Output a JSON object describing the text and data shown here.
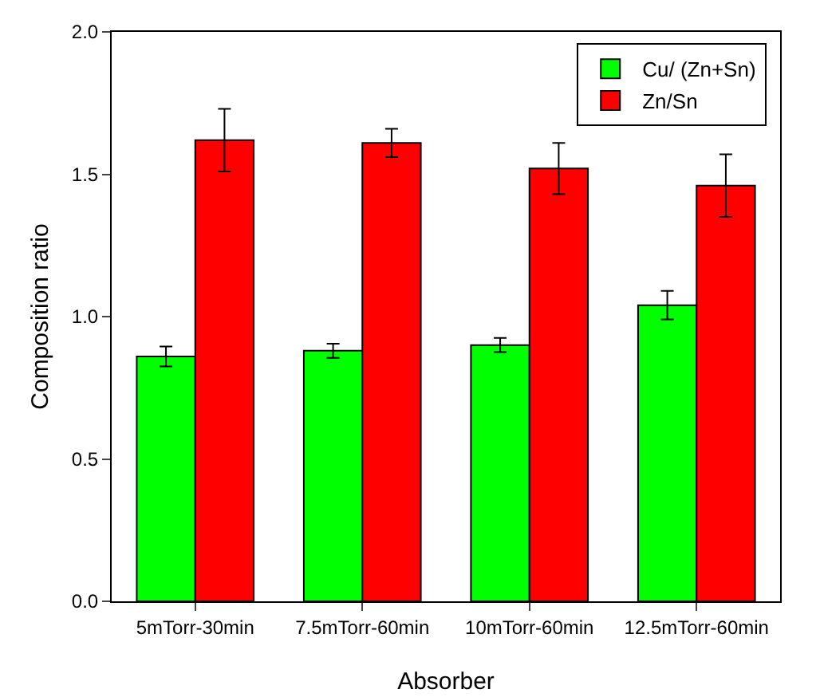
{
  "chart_data": {
    "type": "bar",
    "xlabel": "Absorber",
    "ylabel": "Composition ratio",
    "categories": [
      "5mTorr-30min",
      "7.5mTorr-60min",
      "10mTorr-60min",
      "12.5mTorr-60min"
    ],
    "series": [
      {
        "name": "Cu/ (Zn+Sn)",
        "color": "#00ff00",
        "values": [
          0.86,
          0.88,
          0.9,
          1.04
        ],
        "errors": [
          0.035,
          0.025,
          0.025,
          0.05
        ]
      },
      {
        "name": "Zn/Sn",
        "color": "#ff0000",
        "values": [
          1.62,
          1.61,
          1.52,
          1.46
        ],
        "errors": [
          0.11,
          0.05,
          0.09,
          0.11
        ]
      }
    ],
    "ylim": [
      0,
      2.0
    ],
    "yticks": [
      {
        "value": 0,
        "label": "0.0"
      },
      {
        "value": 0.5,
        "label": "0.5"
      },
      {
        "value": 1,
        "label": "1.0"
      },
      {
        "value": 1.5,
        "label": "1.5"
      },
      {
        "value": 2,
        "label": "2.0"
      }
    ],
    "grid": false,
    "legend": "top right"
  }
}
